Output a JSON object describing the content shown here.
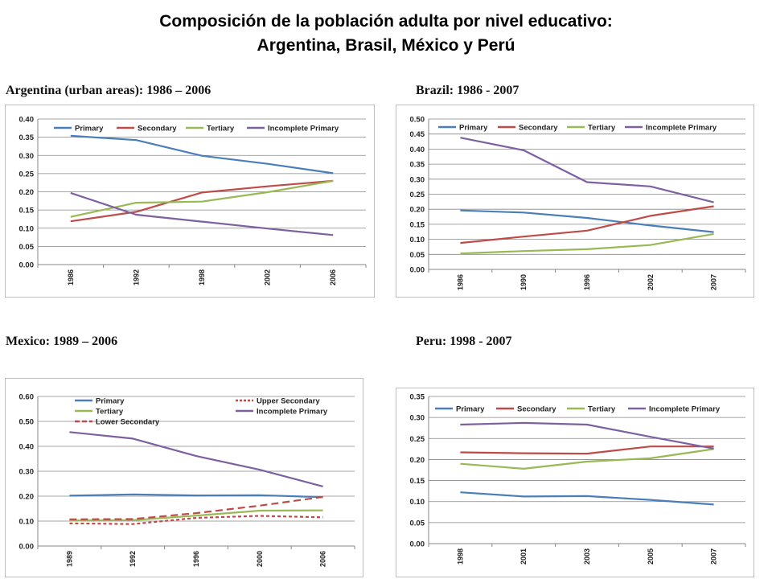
{
  "page": {
    "title_line1": "Composición de la población adulta por nivel educativo:",
    "title_line2": "Argentina, Brasil, México y Perú"
  },
  "colors": {
    "primary": "#4a7ebb",
    "secondary": "#be4b48",
    "tertiary": "#98b954",
    "incomplete_primary": "#7d60a0"
  },
  "chart_data": [
    {
      "type": "line",
      "heading": "Argentina (urban areas): 1986 – 2006",
      "categories": [
        "1986",
        "1992",
        "1998",
        "2002",
        "2006"
      ],
      "ylim": [
        0,
        0.4
      ],
      "yticks": [
        "0.00",
        "0.05",
        "0.10",
        "0.15",
        "0.20",
        "0.25",
        "0.30",
        "0.35",
        "0.40"
      ],
      "grid": true,
      "legend_position": "top",
      "legend_layout": "single-row",
      "series": [
        {
          "name": "Primary",
          "color": "#4a7ebb",
          "style": "solid",
          "values": [
            0.354,
            0.342,
            0.299,
            0.277,
            0.251
          ]
        },
        {
          "name": "Secondary",
          "color": "#be4b48",
          "style": "solid",
          "values": [
            0.119,
            0.145,
            0.198,
            0.215,
            0.23
          ]
        },
        {
          "name": "Tertiary",
          "color": "#98b954",
          "style": "solid",
          "values": [
            0.131,
            0.17,
            0.173,
            0.199,
            0.23
          ]
        },
        {
          "name": "Incomplete Primary",
          "color": "#7d60a0",
          "style": "solid",
          "values": [
            0.197,
            0.137,
            0.118,
            0.099,
            0.081
          ]
        }
      ]
    },
    {
      "type": "line",
      "heading": "Brazil: 1986 - 2007",
      "categories": [
        "1986",
        "1990",
        "1996",
        "2002",
        "2007"
      ],
      "ylim": [
        0,
        0.5
      ],
      "yticks": [
        "0.00",
        "0.05",
        "0.10",
        "0.15",
        "0.20",
        "0.25",
        "0.30",
        "0.35",
        "0.40",
        "0.45",
        "0.50"
      ],
      "grid": true,
      "legend_position": "top",
      "legend_layout": "single-row",
      "series": [
        {
          "name": "Primary",
          "color": "#4a7ebb",
          "style": "solid",
          "values": [
            0.196,
            0.189,
            0.171,
            0.146,
            0.124
          ]
        },
        {
          "name": "Secondary",
          "color": "#be4b48",
          "style": "solid",
          "values": [
            0.088,
            0.109,
            0.129,
            0.178,
            0.21
          ]
        },
        {
          "name": "Tertiary",
          "color": "#98b954",
          "style": "solid",
          "values": [
            0.053,
            0.061,
            0.067,
            0.081,
            0.118
          ]
        },
        {
          "name": "Incomplete Primary",
          "color": "#7d60a0",
          "style": "solid",
          "values": [
            0.438,
            0.396,
            0.29,
            0.276,
            0.223
          ]
        }
      ]
    },
    {
      "type": "line",
      "heading": "Mexico: 1989 – 2006",
      "categories": [
        "1989",
        "1992",
        "1996",
        "2000",
        "2006"
      ],
      "ylim": [
        0,
        0.6
      ],
      "yticks": [
        "0.00",
        "0.10",
        "0.20",
        "0.30",
        "0.40",
        "0.50",
        "0.60"
      ],
      "grid": true,
      "legend_position": "top",
      "legend_layout": "two-column",
      "series": [
        {
          "name": "Primary",
          "color": "#4a7ebb",
          "style": "solid",
          "values": [
            0.202,
            0.207,
            0.203,
            0.204,
            0.196
          ]
        },
        {
          "name": "Tertiary",
          "color": "#98b954",
          "style": "solid",
          "values": [
            0.102,
            0.104,
            0.122,
            0.142,
            0.143
          ]
        },
        {
          "name": "Lower Secondary",
          "color": "#be4b48",
          "style": "dashed",
          "values": [
            0.107,
            0.108,
            0.132,
            0.162,
            0.197
          ]
        },
        {
          "name": "Upper Secondary",
          "color": "#be4b48",
          "style": "dotted",
          "values": [
            0.091,
            0.088,
            0.113,
            0.121,
            0.115
          ]
        },
        {
          "name": "Incomplete Primary",
          "color": "#7d60a0",
          "style": "solid",
          "values": [
            0.457,
            0.431,
            0.361,
            0.306,
            0.239
          ]
        }
      ]
    },
    {
      "type": "line",
      "heading": "Peru: 1998 - 2007",
      "categories": [
        "1998",
        "2001",
        "2003",
        "2005",
        "2007"
      ],
      "ylim": [
        0,
        0.35
      ],
      "yticks": [
        "0.00",
        "0.05",
        "0.10",
        "0.15",
        "0.20",
        "0.25",
        "0.30",
        "0.35"
      ],
      "grid": true,
      "legend_position": "top",
      "legend_layout": "single-row",
      "series": [
        {
          "name": "Primary",
          "color": "#4a7ebb",
          "style": "solid",
          "values": [
            0.122,
            0.112,
            0.113,
            0.104,
            0.093
          ]
        },
        {
          "name": "Secondary",
          "color": "#be4b48",
          "style": "solid",
          "values": [
            0.217,
            0.215,
            0.214,
            0.231,
            0.231
          ]
        },
        {
          "name": "Tertiary",
          "color": "#98b954",
          "style": "solid",
          "values": [
            0.19,
            0.178,
            0.195,
            0.203,
            0.225
          ]
        },
        {
          "name": "Incomplete Primary",
          "color": "#7d60a0",
          "style": "solid",
          "values": [
            0.283,
            0.287,
            0.283,
            0.254,
            0.226
          ]
        }
      ]
    }
  ]
}
